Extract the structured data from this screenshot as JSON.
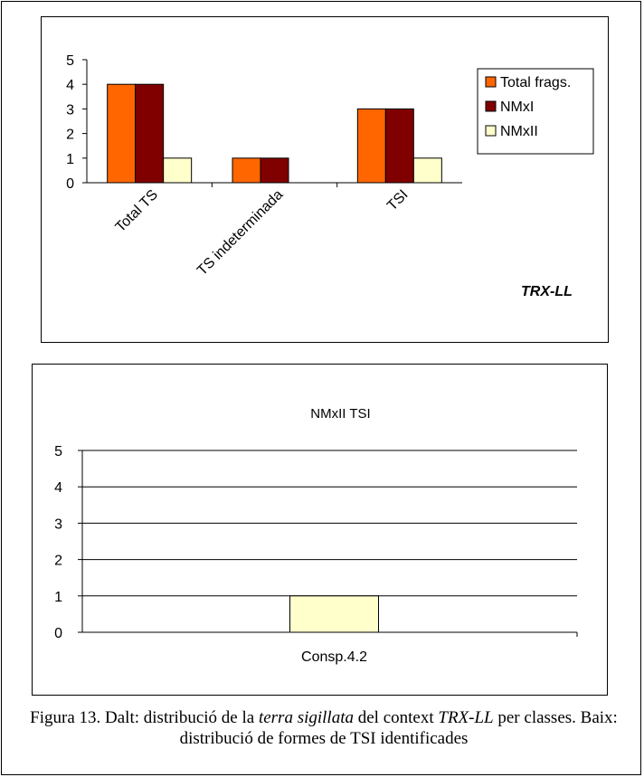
{
  "chart_data": [
    {
      "type": "bar",
      "categories": [
        "Total TS",
        "TS indeterminada",
        "TSI"
      ],
      "series": [
        {
          "name": "Total frags.",
          "values": [
            4,
            1,
            3
          ],
          "color": "#ff6600"
        },
        {
          "name": "NMxI",
          "values": [
            4,
            1,
            3
          ],
          "color": "#800000"
        },
        {
          "name": "NMxII",
          "values": [
            1,
            0,
            1
          ],
          "color": "#ffffcc"
        }
      ],
      "ylim": [
        0,
        5
      ],
      "yticks": [
        "0",
        "1",
        "2",
        "3",
        "4",
        "5"
      ],
      "annotation": "TRX-LL",
      "grid": false,
      "legend": "right"
    },
    {
      "type": "bar",
      "title": "NMxII TSI",
      "categories": [
        "Consp.4.2"
      ],
      "series": [
        {
          "values": [
            1
          ],
          "color": "#ffffcc"
        }
      ],
      "ylim": [
        0,
        5
      ],
      "yticks": [
        "0",
        "1",
        "2",
        "3",
        "4",
        "5"
      ],
      "grid": true
    }
  ],
  "caption": {
    "part1": "Figura 13. Dalt: distribució de la ",
    "part2": "terra sigillata",
    "part3": " del context ",
    "part4": "TRX-LL",
    "part5": " per classes. Baix: distribució de formes de TSI identificades"
  }
}
